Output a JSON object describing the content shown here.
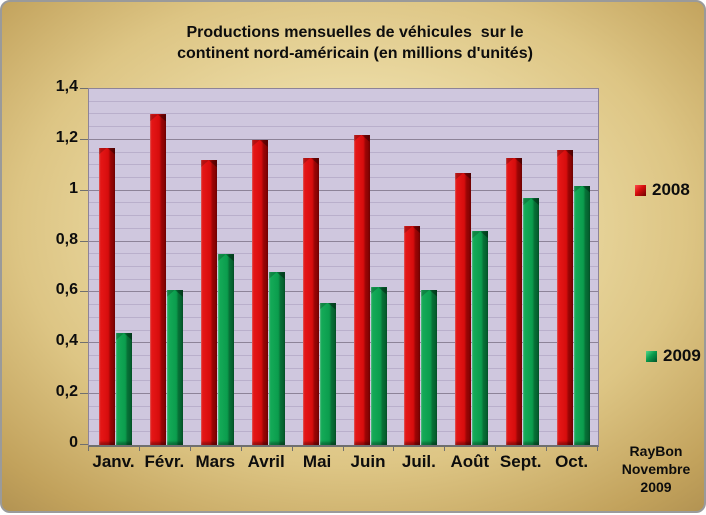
{
  "window": {
    "background_center": "#f3e7bc",
    "background_edge": "#a5864a",
    "border_color": "#9a9a9a"
  },
  "chart_data": {
    "type": "bar",
    "title": "Productions mensuelles de véhicules sur le continent nord-américain (en millions d'unités)",
    "title_lines": [
      "Productions mensuelles de véhicules  sur le",
      "continent nord-américain (en millions d'unités)"
    ],
    "categories": [
      "Janv.",
      "Févr.",
      "Mars",
      "Avril",
      "Mai",
      "Juin",
      "Juil.",
      "Août",
      "Sept.",
      "Oct."
    ],
    "series": [
      {
        "name": "2008",
        "color": "#d60d0d",
        "values": [
          1.17,
          1.3,
          1.12,
          1.2,
          1.13,
          1.22,
          0.86,
          1.07,
          1.13,
          1.16
        ]
      },
      {
        "name": "2009",
        "color": "#0b9c4d",
        "values": [
          0.44,
          0.61,
          0.75,
          0.68,
          0.56,
          0.62,
          0.61,
          0.84,
          0.97,
          1.02
        ]
      }
    ],
    "xlabel": "",
    "ylabel": "",
    "ylim": [
      0,
      1.4
    ],
    "ytick_values": [
      0,
      0.2,
      0.4,
      0.6,
      0.8,
      1.0,
      1.2,
      1.4
    ],
    "ytick_labels": [
      "0",
      "0,2",
      "0,4",
      "0,6",
      "0,8",
      "1",
      "1,2",
      "1,4"
    ],
    "minor_grid_step": 0.05,
    "major_grid_step": 0.2,
    "grid": true,
    "legend_position": "right",
    "plot_background": "#cfc7de",
    "minor_grid_color": "#b9afcb",
    "major_grid_color": "#8d8398",
    "axis_color": "#6f6f6f"
  },
  "credit": {
    "lines": [
      "RayBon",
      "Novembre",
      "2009"
    ]
  }
}
